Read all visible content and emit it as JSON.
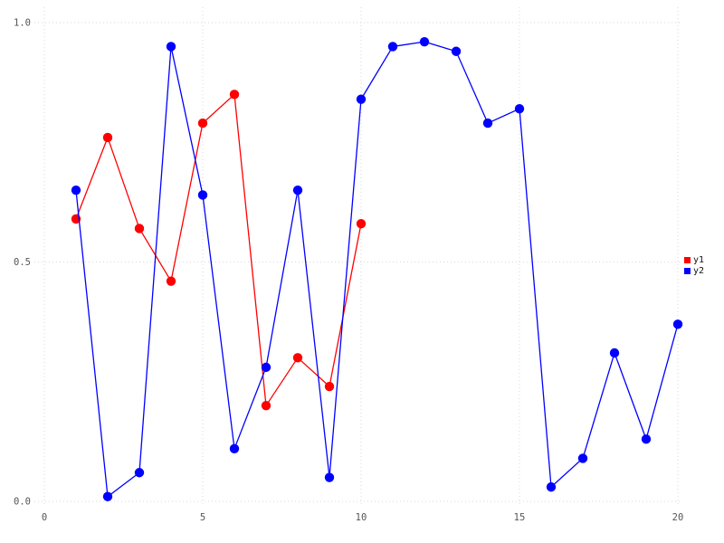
{
  "chart_data": {
    "type": "line",
    "title": "",
    "xlabel": "",
    "ylabel": "",
    "xlim": [
      0,
      20
    ],
    "ylim": [
      0.0,
      1.0
    ],
    "grid": true,
    "grid_style": "dotted",
    "grid_color": "#d9d9e0",
    "tick_label_color": "#555555",
    "background_color": "#ffffff",
    "x_ticks": {
      "values": [
        0,
        5,
        10,
        15,
        20
      ],
      "labels": [
        "0",
        "5",
        "10",
        "15",
        "20"
      ]
    },
    "y_ticks": {
      "values": [
        0.0,
        0.5,
        1.0
      ],
      "labels": [
        "0.0",
        "0.5",
        "1.0"
      ]
    },
    "series": [
      {
        "name": "y1",
        "color": "#ff0000",
        "x": [
          1,
          2,
          3,
          4,
          5,
          6,
          7,
          8,
          9,
          10
        ],
        "values": [
          0.59,
          0.76,
          0.57,
          0.46,
          0.79,
          0.85,
          0.2,
          0.3,
          0.24,
          0.58
        ]
      },
      {
        "name": "y2",
        "color": "#0000ff",
        "x": [
          1,
          2,
          3,
          4,
          5,
          6,
          7,
          8,
          9,
          10,
          11,
          12,
          13,
          14,
          15,
          16,
          17,
          18,
          19,
          20
        ],
        "values": [
          0.65,
          0.01,
          0.06,
          0.95,
          0.64,
          0.11,
          0.28,
          0.65,
          0.05,
          0.84,
          0.95,
          0.96,
          0.94,
          0.79,
          0.82,
          0.03,
          0.09,
          0.31,
          0.13,
          0.37
        ]
      }
    ],
    "legend": {
      "position": "right-middle",
      "items": [
        {
          "label": "y1",
          "color": "#ff0000"
        },
        {
          "label": "y2",
          "color": "#0000ff"
        }
      ]
    }
  }
}
